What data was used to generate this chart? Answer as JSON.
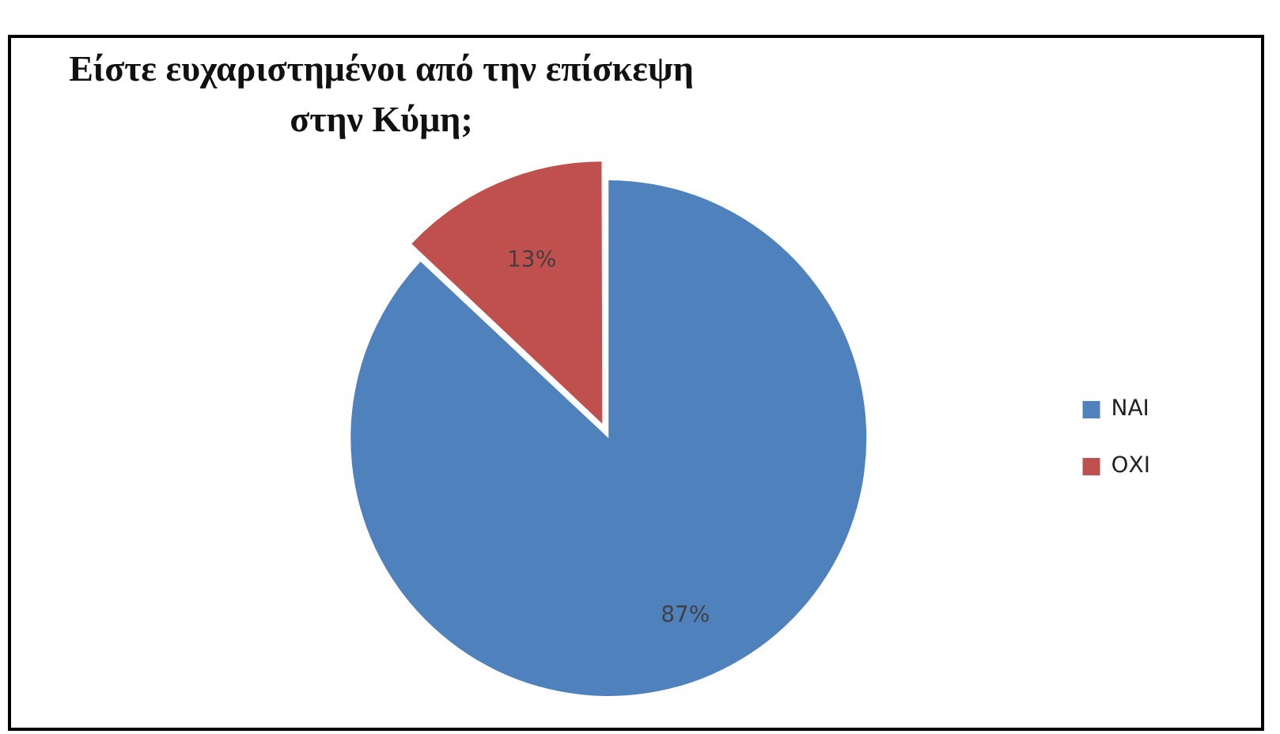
{
  "chart_data": {
    "type": "pie",
    "title": "Είστε ευχαριστημένοι από την επίσκεψη στην Κύμη;",
    "categories": [
      "ΝΑΙ",
      "ΟΧΙ"
    ],
    "values": [
      87,
      13
    ],
    "colors": [
      "#4f81bd",
      "#c0504d"
    ],
    "value_labels": [
      "87%",
      "13%"
    ],
    "legend": "right"
  }
}
